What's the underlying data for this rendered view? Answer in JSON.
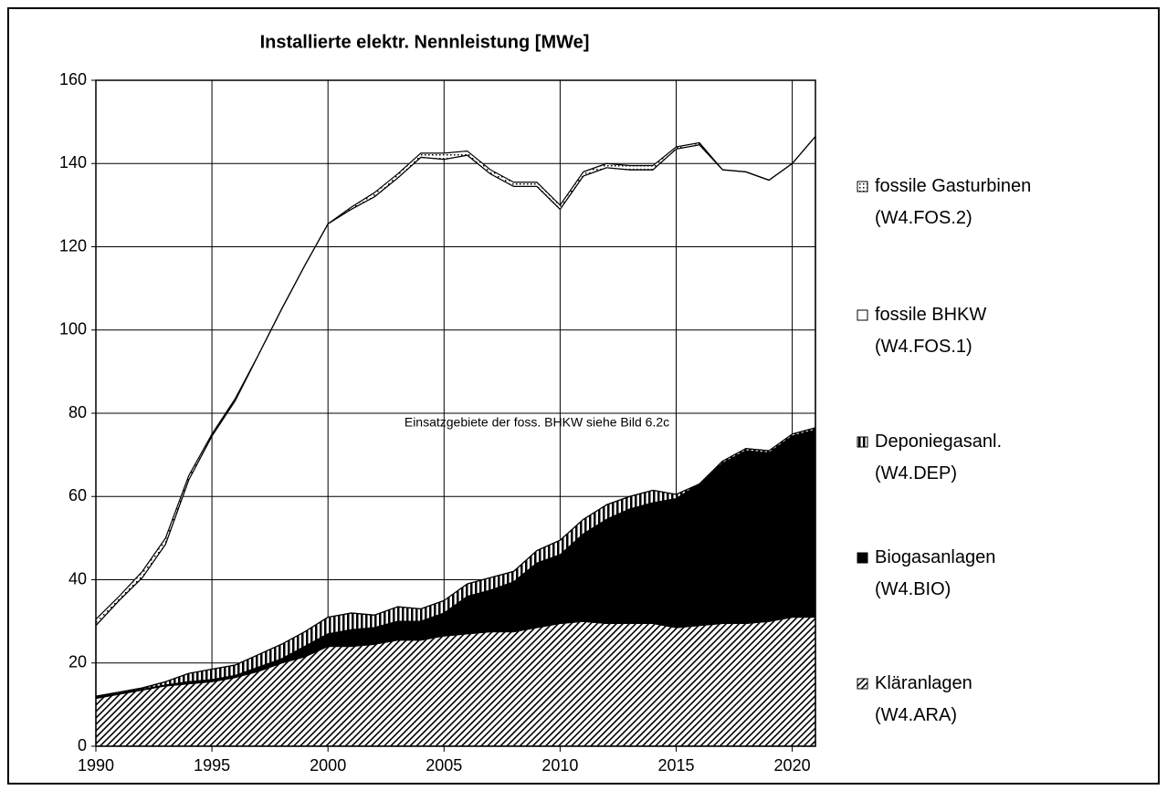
{
  "chart_data": {
    "type": "stacked_area",
    "title": "Installierte elektr. Nennleistung [MWe]",
    "annotation": "Einsatzgebiete der foss. BHKW siehe Bild 6.2c",
    "x": [
      1990,
      1991,
      1992,
      1993,
      1994,
      1995,
      1996,
      1997,
      1998,
      1999,
      2000,
      2001,
      2002,
      2003,
      2004,
      2005,
      2006,
      2007,
      2008,
      2009,
      2010,
      2011,
      2012,
      2013,
      2014,
      2015,
      2016,
      2017,
      2018,
      2019,
      2020,
      2021
    ],
    "xlim": [
      1990,
      2021
    ],
    "xticks": [
      1990,
      1995,
      2000,
      2005,
      2010,
      2015,
      2020
    ],
    "ylim": [
      0,
      160
    ],
    "yticks": [
      0,
      20,
      40,
      60,
      80,
      100,
      120,
      140,
      160
    ],
    "grid": true,
    "series": [
      {
        "name": "Kläranlagen\n(W4.ARA)",
        "pattern": "hatch",
        "values": [
          11.5,
          12.5,
          13.5,
          14.5,
          15,
          15.5,
          16.5,
          18,
          20,
          21.5,
          24,
          24,
          24.5,
          25.5,
          25.5,
          26.5,
          27,
          27.5,
          27.5,
          28.5,
          29.5,
          30,
          29.5,
          29.5,
          29.5,
          28.5,
          29,
          29.5,
          29.5,
          30,
          31,
          31
        ]
      },
      {
        "name": "Biogasanlagen\n(W4.BIO)",
        "pattern": "solid",
        "values": [
          0.3,
          0.2,
          0.2,
          0.2,
          0.5,
          0.5,
          0.5,
          1,
          1,
          2.5,
          3,
          4,
          4,
          4.5,
          4.5,
          5.5,
          9,
          10,
          12,
          15.5,
          16.5,
          21,
          25,
          27.5,
          29,
          31,
          34,
          38.5,
          41.5,
          40.5,
          43.5,
          45
        ]
      },
      {
        "name": "Deponiegasanl.\n(W4.DEP)",
        "pattern": "stripes",
        "values": [
          0.2,
          0.3,
          0.3,
          0.8,
          2,
          2.5,
          2.5,
          3,
          3.5,
          3.5,
          4,
          4,
          3,
          3.5,
          3,
          3,
          3,
          3,
          2.5,
          3,
          3.5,
          3.5,
          3.5,
          3,
          3,
          1,
          0,
          0.5,
          0.5,
          0.5,
          0.5,
          0.5
        ]
      },
      {
        "name": "fossile BHKW\n(W4.FOS.1)",
        "pattern": "empty",
        "values": [
          17,
          22,
          26.5,
          33,
          46.5,
          56,
          63.5,
          72,
          80.5,
          88,
          94.5,
          97,
          100.5,
          103,
          108.5,
          106,
          103,
          97,
          92.5,
          87.5,
          79.5,
          82.5,
          81,
          78.5,
          77,
          83,
          81.5,
          70,
          66.5,
          65,
          65,
          70
        ]
      },
      {
        "name": "fossile Gasturbinen\n(W4.FOS.2)",
        "pattern": "dots",
        "values": [
          1.5,
          1,
          1.5,
          1.5,
          1,
          0.5,
          0.5,
          0,
          0,
          0,
          0,
          0.5,
          1,
          1,
          1,
          1.5,
          1,
          1,
          1,
          1,
          1,
          1,
          1,
          1,
          1,
          0.5,
          0.5,
          0,
          0,
          0,
          0,
          0
        ]
      }
    ]
  }
}
